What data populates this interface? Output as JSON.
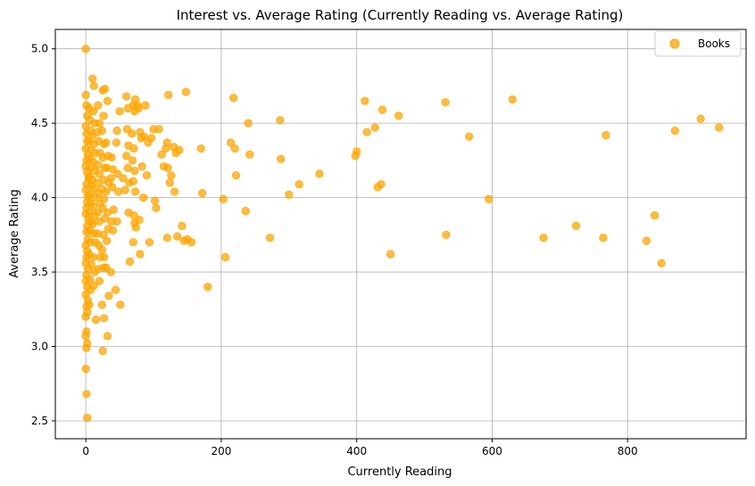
{
  "chart_data": {
    "type": "scatter",
    "title": "Interest vs. Average Rating (Currently Reading vs. Average Rating)",
    "xlabel": "Currently Reading",
    "ylabel": "Average Rating",
    "xlim": [
      -45,
      975
    ],
    "ylim": [
      2.38,
      5.13
    ],
    "xticks": [
      0,
      200,
      400,
      600,
      800
    ],
    "yticks": [
      2.5,
      3.0,
      3.5,
      4.0,
      4.5,
      5.0
    ],
    "ytick_labels": [
      "2.5",
      "3.0",
      "3.5",
      "4.0",
      "4.5",
      "5.0"
    ],
    "grid": true,
    "legend": "top-right",
    "color": "#FFA500",
    "series": [
      {
        "name": "Books",
        "points": [
          [
            0,
            5.0
          ],
          [
            0,
            4.69
          ],
          [
            1,
            4.62
          ],
          [
            2,
            4.55
          ],
          [
            0,
            4.48
          ],
          [
            1,
            4.43
          ],
          [
            2,
            4.38
          ],
          [
            0,
            4.33
          ],
          [
            3,
            4.29
          ],
          [
            1,
            4.25
          ],
          [
            0,
            4.21
          ],
          [
            2,
            4.17
          ],
          [
            4,
            4.13
          ],
          [
            1,
            4.09
          ],
          [
            0,
            4.05
          ],
          [
            3,
            4.01
          ],
          [
            2,
            3.97
          ],
          [
            1,
            3.93
          ],
          [
            0,
            3.89
          ],
          [
            4,
            3.85
          ],
          [
            2,
            3.81
          ],
          [
            1,
            3.77
          ],
          [
            3,
            3.72
          ],
          [
            0,
            3.68
          ],
          [
            2,
            3.64
          ],
          [
            1,
            3.6
          ],
          [
            0,
            3.56
          ],
          [
            3,
            3.52
          ],
          [
            1,
            3.48
          ],
          [
            0,
            3.44
          ],
          [
            2,
            3.4
          ],
          [
            0,
            3.35
          ],
          [
            3,
            3.31
          ],
          [
            1,
            3.27
          ],
          [
            2,
            3.23
          ],
          [
            0,
            3.2
          ],
          [
            1,
            3.1
          ],
          [
            0,
            3.07
          ],
          [
            2,
            3.02
          ],
          [
            1,
            2.99
          ],
          [
            0,
            2.85
          ],
          [
            1,
            2.68
          ],
          [
            2,
            2.52
          ],
          [
            5,
            4.6
          ],
          [
            6,
            4.52
          ],
          [
            7,
            4.45
          ],
          [
            5,
            4.38
          ],
          [
            8,
            4.32
          ],
          [
            6,
            4.26
          ],
          [
            7,
            4.2
          ],
          [
            5,
            4.14
          ],
          [
            8,
            4.08
          ],
          [
            6,
            4.02
          ],
          [
            7,
            3.96
          ],
          [
            5,
            3.9
          ],
          [
            8,
            3.84
          ],
          [
            6,
            3.78
          ],
          [
            7,
            3.7
          ],
          [
            5,
            3.62
          ],
          [
            8,
            3.55
          ],
          [
            6,
            3.45
          ],
          [
            7,
            3.38
          ],
          [
            5,
            3.28
          ],
          [
            10,
            4.8
          ],
          [
            12,
            4.75
          ],
          [
            11,
            4.58
          ],
          [
            13,
            4.5
          ],
          [
            10,
            4.42
          ],
          [
            12,
            4.36
          ],
          [
            14,
            4.3
          ],
          [
            11,
            4.24
          ],
          [
            13,
            4.18
          ],
          [
            10,
            4.12
          ],
          [
            12,
            4.06
          ],
          [
            14,
            4.0
          ],
          [
            11,
            3.94
          ],
          [
            13,
            3.88
          ],
          [
            10,
            3.82
          ],
          [
            12,
            3.76
          ],
          [
            14,
            3.7
          ],
          [
            11,
            3.6
          ],
          [
            13,
            3.5
          ],
          [
            12,
            3.41
          ],
          [
            15,
            3.18
          ],
          [
            18,
            4.62
          ],
          [
            20,
            4.5
          ],
          [
            17,
            4.44
          ],
          [
            19,
            4.38
          ],
          [
            21,
            4.3
          ],
          [
            18,
            4.22
          ],
          [
            20,
            4.16
          ],
          [
            17,
            4.1
          ],
          [
            19,
            4.03
          ],
          [
            21,
            3.96
          ],
          [
            18,
            3.9
          ],
          [
            20,
            3.84
          ],
          [
            17,
            3.76
          ],
          [
            19,
            3.68
          ],
          [
            21,
            3.6
          ],
          [
            18,
            3.52
          ],
          [
            20,
            3.44
          ],
          [
            25,
            4.72
          ],
          [
            28,
            4.73
          ],
          [
            26,
            4.55
          ],
          [
            24,
            4.45
          ],
          [
            27,
            4.36
          ],
          [
            25,
            4.27
          ],
          [
            28,
            4.2
          ],
          [
            26,
            4.12
          ],
          [
            24,
            4.06
          ],
          [
            27,
            3.99
          ],
          [
            25,
            3.93
          ],
          [
            28,
            3.86
          ],
          [
            26,
            3.75
          ],
          [
            24,
            3.65
          ],
          [
            27,
            3.6
          ],
          [
            26,
            3.53
          ],
          [
            24,
            3.28
          ],
          [
            27,
            3.19
          ],
          [
            25,
            2.97
          ],
          [
            32,
            4.65
          ],
          [
            30,
            4.37
          ],
          [
            33,
            4.28
          ],
          [
            31,
            4.2
          ],
          [
            34,
            4.1
          ],
          [
            30,
            4.04
          ],
          [
            32,
            3.9
          ],
          [
            33,
            3.79
          ],
          [
            31,
            3.71
          ],
          [
            30,
            3.53
          ],
          [
            34,
            3.34
          ],
          [
            32,
            3.07
          ],
          [
            38,
            4.27
          ],
          [
            40,
            4.19
          ],
          [
            37,
            4.13
          ],
          [
            39,
            4.07
          ],
          [
            41,
            3.92
          ],
          [
            38,
            3.84
          ],
          [
            40,
            3.78
          ],
          [
            37,
            3.5
          ],
          [
            44,
            3.38
          ],
          [
            46,
            4.45
          ],
          [
            45,
            4.37
          ],
          [
            47,
            4.16
          ],
          [
            48,
            4.04
          ],
          [
            46,
            3.84
          ],
          [
            50,
            4.58
          ],
          [
            51,
            3.28
          ],
          [
            55,
            4.13
          ],
          [
            58,
            4.05
          ],
          [
            60,
            4.68
          ],
          [
            62,
            4.6
          ],
          [
            61,
            4.46
          ],
          [
            63,
            4.35
          ],
          [
            60,
            4.28
          ],
          [
            62,
            4.2
          ],
          [
            64,
            4.1
          ],
          [
            63,
            3.9
          ],
          [
            65,
            3.57
          ],
          [
            70,
            4.62
          ],
          [
            72,
            4.58
          ],
          [
            73,
            4.66
          ],
          [
            68,
            4.43
          ],
          [
            71,
            4.33
          ],
          [
            69,
            4.25
          ],
          [
            72,
            4.18
          ],
          [
            70,
            4.11
          ],
          [
            73,
            4.04
          ],
          [
            71,
            3.88
          ],
          [
            74,
            3.8
          ],
          [
            70,
            3.7
          ],
          [
            72,
            3.83
          ],
          [
            76,
            4.62
          ],
          [
            78,
            4.6
          ],
          [
            80,
            4.44
          ],
          [
            82,
            4.4
          ],
          [
            83,
            4.21
          ],
          [
            79,
            3.85
          ],
          [
            85,
            4.0
          ],
          [
            80,
            3.62
          ],
          [
            88,
            4.62
          ],
          [
            86,
            4.41
          ],
          [
            90,
            4.15
          ],
          [
            92,
            4.37
          ],
          [
            94,
            3.7
          ],
          [
            97,
            4.4
          ],
          [
            100,
            4.46
          ],
          [
            102,
            3.98
          ],
          [
            104,
            3.93
          ],
          [
            108,
            4.46
          ],
          [
            112,
            4.29
          ],
          [
            115,
            4.21
          ],
          [
            118,
            4.33
          ],
          [
            120,
            4.37
          ],
          [
            122,
            4.69
          ],
          [
            121,
            4.2
          ],
          [
            124,
            4.1
          ],
          [
            126,
            4.15
          ],
          [
            120,
            3.73
          ],
          [
            130,
            4.34
          ],
          [
            133,
            4.3
          ],
          [
            131,
            4.04
          ],
          [
            135,
            3.74
          ],
          [
            138,
            4.32
          ],
          [
            142,
            3.81
          ],
          [
            145,
            3.71
          ],
          [
            148,
            4.71
          ],
          [
            150,
            3.72
          ],
          [
            156,
            3.7
          ],
          [
            170,
            4.33
          ],
          [
            172,
            4.03
          ],
          [
            180,
            3.4
          ],
          [
            203,
            3.99
          ],
          [
            206,
            3.6
          ],
          [
            214,
            4.37
          ],
          [
            218,
            4.67
          ],
          [
            220,
            4.33
          ],
          [
            222,
            4.15
          ],
          [
            236,
            3.91
          ],
          [
            240,
            4.5
          ],
          [
            242,
            4.29
          ],
          [
            272,
            3.73
          ],
          [
            287,
            4.52
          ],
          [
            288,
            4.26
          ],
          [
            300,
            4.02
          ],
          [
            315,
            4.09
          ],
          [
            345,
            4.16
          ],
          [
            398,
            4.28
          ],
          [
            400,
            4.31
          ],
          [
            412,
            4.65
          ],
          [
            415,
            4.44
          ],
          [
            427,
            4.47
          ],
          [
            431,
            4.07
          ],
          [
            436,
            4.09
          ],
          [
            438,
            4.59
          ],
          [
            450,
            3.62
          ],
          [
            462,
            4.55
          ],
          [
            531,
            4.64
          ],
          [
            532,
            3.75
          ],
          [
            566,
            4.41
          ],
          [
            595,
            3.99
          ],
          [
            630,
            4.66
          ],
          [
            676,
            3.73
          ],
          [
            724,
            3.81
          ],
          [
            764,
            3.73
          ],
          [
            768,
            4.42
          ],
          [
            828,
            3.71
          ],
          [
            840,
            3.88
          ],
          [
            850,
            3.56
          ],
          [
            870,
            4.45
          ],
          [
            908,
            4.53
          ],
          [
            935,
            4.47
          ]
        ]
      }
    ]
  }
}
